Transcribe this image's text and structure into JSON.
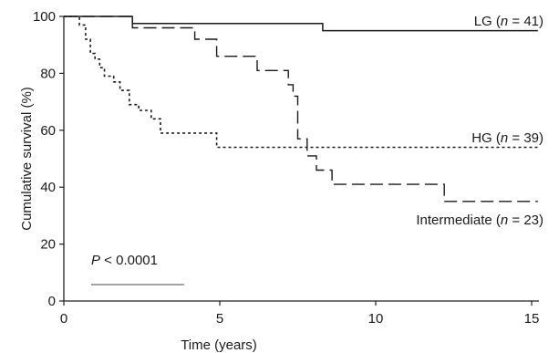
{
  "chart_data": {
    "type": "line",
    "title": "",
    "xlabel": "Time (years)",
    "ylabel": "Cumulative survival (%)",
    "xlim": [
      0,
      15
    ],
    "ylim": [
      0,
      100
    ],
    "x_ticks": [
      0,
      5,
      10,
      15
    ],
    "y_ticks": [
      0,
      20,
      40,
      60,
      80,
      100
    ],
    "grid": false,
    "legend": "inline",
    "annotation": {
      "p_symbol": "P",
      "p_rest": " < 0.0001"
    },
    "series": [
      {
        "name": "LG",
        "n_symbol": "n",
        "n_text": " = 41)",
        "label_prefix": "LG (",
        "style": "solid",
        "x": [
          0,
          2.2,
          2.2,
          8.3,
          8.3,
          15.2
        ],
        "y": [
          100,
          100,
          97.5,
          97.5,
          95,
          95
        ]
      },
      {
        "name": "HG",
        "n_symbol": "n",
        "n_text": " = 39)",
        "label_prefix": "HG (",
        "style": "dotted",
        "x": [
          0,
          0.5,
          0.5,
          0.7,
          0.7,
          0.85,
          0.85,
          1.0,
          1.0,
          1.15,
          1.15,
          1.3,
          1.3,
          1.6,
          1.6,
          1.8,
          1.8,
          2.1,
          2.1,
          2.4,
          2.4,
          2.8,
          2.8,
          3.1,
          3.1,
          4.9,
          4.9,
          15.2
        ],
        "y": [
          100,
          100,
          97,
          97,
          92,
          92,
          87,
          87,
          85,
          85,
          82,
          82,
          79,
          79,
          77,
          77,
          74,
          74,
          69,
          69,
          67,
          67,
          64,
          64,
          59,
          59,
          54,
          54
        ]
      },
      {
        "name": "Intermediate",
        "n_symbol": "n",
        "n_text": " = 23)",
        "label_prefix": "Intermediate (",
        "style": "dashed",
        "x": [
          0,
          2.2,
          2.2,
          4.2,
          4.2,
          4.9,
          4.9,
          6.2,
          6.2,
          7.2,
          7.2,
          7.35,
          7.35,
          7.5,
          7.5,
          7.8,
          7.8,
          8.1,
          8.1,
          8.6,
          8.6,
          12.2,
          12.2,
          15.2
        ],
        "y": [
          100,
          100,
          96,
          96,
          92,
          92,
          86,
          86,
          81,
          81,
          76,
          76,
          72,
          72,
          57,
          57,
          51,
          51,
          46,
          46,
          41,
          41,
          35,
          35
        ]
      }
    ]
  }
}
